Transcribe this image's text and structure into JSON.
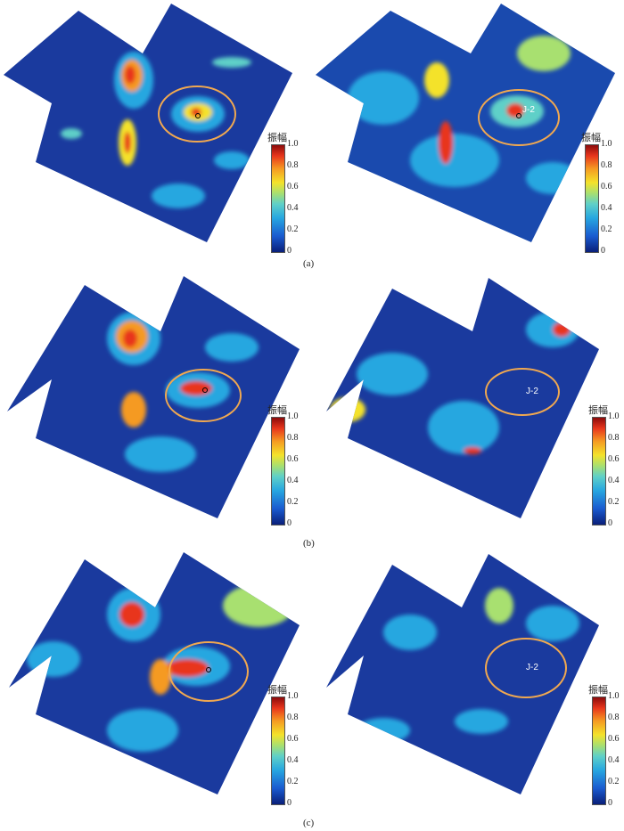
{
  "colorbar": {
    "title": "振幅",
    "ticks": [
      "1.0",
      "0.8",
      "0.6",
      "0.4",
      "0.2",
      "0"
    ],
    "colors": [
      "#0a1f7a",
      "#1a5bd0",
      "#27a7e0",
      "#5fd0c8",
      "#a8e070",
      "#f4e22a",
      "#f59a22",
      "#e8361c",
      "#8c0b0b"
    ]
  },
  "well": {
    "name": "J-2"
  },
  "rows": [
    {
      "caption": "(a)"
    },
    {
      "caption": "(b)"
    },
    {
      "caption": "(c)"
    }
  ],
  "colors": {
    "background_map": "#1a3a9e",
    "ellipse": "#f0a850"
  }
}
